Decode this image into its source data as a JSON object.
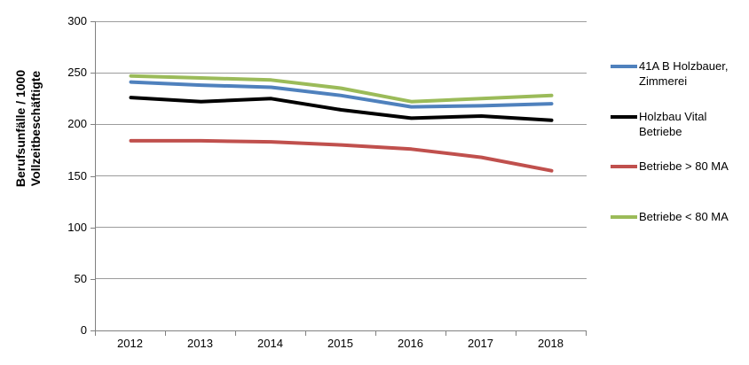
{
  "colors": {
    "axis": "#808080",
    "gridline": "#9C9C9C",
    "text": "#000000"
  },
  "chart_data": {
    "type": "line",
    "title": "",
    "xlabel": "",
    "ylabel": "Berufsunfälle / 1000 Vollzeitbeschäftigte",
    "ylabel_lines": [
      "Berufsunfälle / 1000",
      "Vollzeitbeschäftigte"
    ],
    "categories": [
      "2012",
      "2013",
      "2014",
      "2015",
      "2016",
      "2017",
      "2018"
    ],
    "series": [
      {
        "name": "41A B Holzbauer, Zimmerei",
        "color": "#4F81BD",
        "values": [
          241,
          238,
          236,
          228,
          217,
          218,
          220
        ]
      },
      {
        "name": "Holzbau Vital Betriebe",
        "color": "#000000",
        "values": [
          226,
          222,
          225,
          214,
          206,
          208,
          204
        ]
      },
      {
        "name": "Betriebe > 80 MA",
        "color": "#C0504D",
        "values": [
          184,
          184,
          183,
          180,
          176,
          168,
          155
        ]
      },
      {
        "name": "Betriebe < 80 MA",
        "color": "#9BBB59",
        "values": [
          247,
          245,
          243,
          235,
          222,
          225,
          228
        ]
      }
    ],
    "ylim": [
      0,
      300
    ],
    "y_ticks": [
      300,
      250,
      200,
      150,
      100,
      50,
      0
    ],
    "grid": true,
    "legend_position": "right"
  }
}
